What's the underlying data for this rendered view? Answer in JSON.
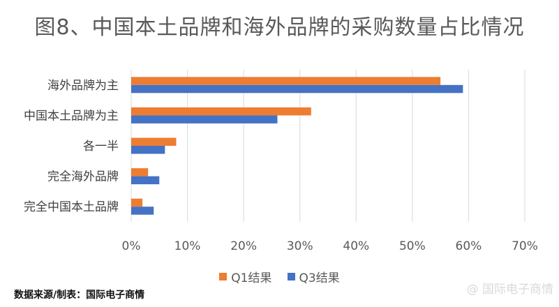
{
  "chart_data": {
    "type": "bar",
    "orientation": "horizontal",
    "title": "图8、中国本土品牌和海外品牌的采购数量占比情况",
    "categories": [
      "海外品牌为主",
      "中国本土品牌为主",
      "各一半",
      "完全海外品牌",
      "完全中国本土品牌"
    ],
    "series": [
      {
        "name": "Q1结果",
        "color": "#ED7D31",
        "values": [
          55,
          32,
          8,
          3,
          2
        ]
      },
      {
        "name": "Q3结果",
        "color": "#4472C4",
        "values": [
          59,
          26,
          6,
          5,
          4
        ]
      }
    ],
    "xlim": [
      0,
      70
    ],
    "xticks": [
      0,
      10,
      20,
      30,
      40,
      50,
      60,
      70
    ],
    "tick_format": "{v}%",
    "grid": true,
    "legend_position": "bottom"
  },
  "source": "数据来源/制表：国际电子商情",
  "watermark": "@ 国际电子商情"
}
